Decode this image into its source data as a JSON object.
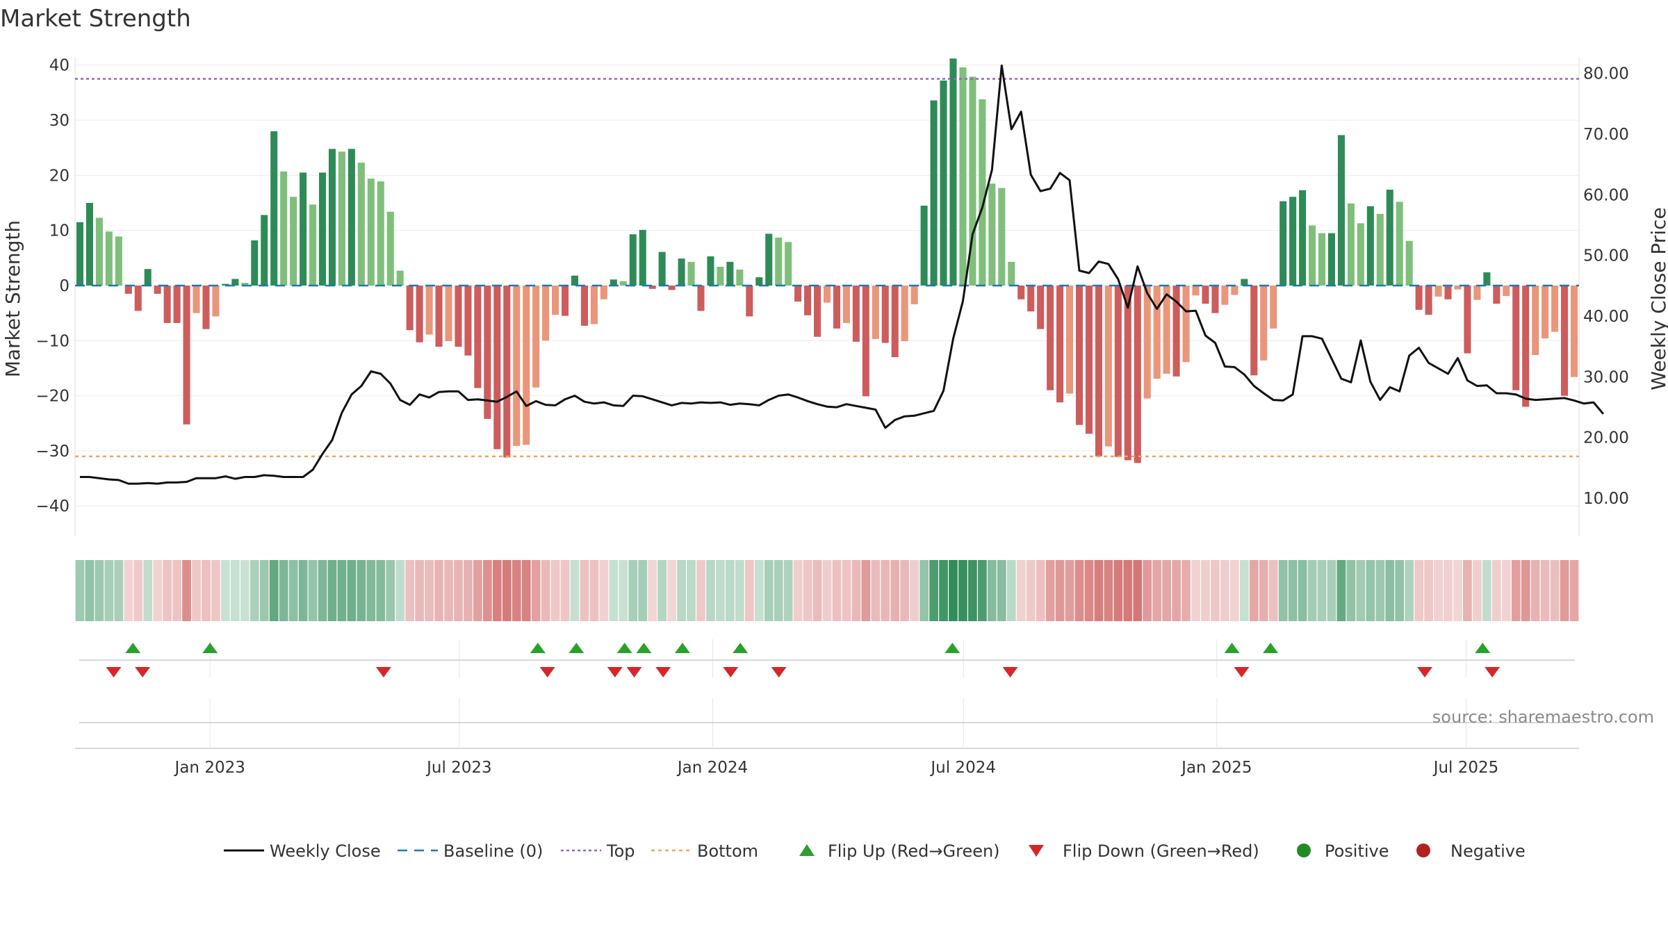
{
  "chart_data": {
    "type": "bar",
    "title": "Market Strength",
    "ylabel_left": "Market Strength",
    "ylabel_right": "Weekly Close Price",
    "ylim_left": [
      -43,
      44
    ],
    "yticks_left": [
      40,
      30,
      20,
      10,
      0,
      -10,
      -20,
      -30,
      -40
    ],
    "ytick_labels_left": [
      "40",
      "30",
      "20",
      "10",
      "0",
      "−10",
      "−20",
      "−30",
      "−40"
    ],
    "ylim_right": [
      6.0,
      85.0
    ],
    "yticks_right": [
      80,
      70,
      60,
      50,
      40,
      30,
      20,
      10
    ],
    "ytick_labels_right": [
      "80.00",
      "70.00",
      "60.00",
      "50.00",
      "40.00",
      "30.00",
      "20.00",
      "10.00"
    ],
    "x_start": "2022-09-25",
    "x_end": "2025-09-21",
    "xticks": [
      {
        "date": "2023-01-01",
        "label": "Jan 2023"
      },
      {
        "date": "2023-07-01",
        "label": "Jul 2023"
      },
      {
        "date": "2024-01-01",
        "label": "Jan 2024"
      },
      {
        "date": "2024-07-01",
        "label": "Jul 2024"
      },
      {
        "date": "2025-01-01",
        "label": "Jan 2025"
      },
      {
        "date": "2025-07-01",
        "label": "Jul 2025"
      }
    ],
    "thresholds": {
      "top": 37.5,
      "bottom": -31.0,
      "baseline": 0
    },
    "strength": [
      11.5,
      15.0,
      12.3,
      9.8,
      8.9,
      -1.5,
      -4.6,
      3.0,
      -1.5,
      -6.8,
      -6.8,
      -25.2,
      -5.0,
      -7.9,
      -5.6,
      0.3,
      1.2,
      0.5,
      8.2,
      12.8,
      28.0,
      20.7,
      16.1,
      20.5,
      14.7,
      20.5,
      24.8,
      24.3,
      24.8,
      22.3,
      19.4,
      18.9,
      13.4,
      2.7,
      -8.1,
      -10.3,
      -8.9,
      -11.1,
      -10.1,
      -11.1,
      -12.7,
      -18.6,
      -24.2,
      -29.7,
      -31.2,
      -29.1,
      -28.9,
      -18.5,
      -10.0,
      -5.3,
      -5.5,
      1.8,
      -7.3,
      -7.0,
      -2.5,
      1.1,
      0.8,
      9.3,
      10.1,
      -0.6,
      6.1,
      -0.8,
      4.9,
      4.3,
      -4.6,
      5.3,
      3.4,
      4.3,
      2.9,
      -5.6,
      1.5,
      9.4,
      8.7,
      7.9,
      -2.9,
      -5.4,
      -9.3,
      -3.1,
      -7.8,
      -6.8,
      -10.2,
      -20.1,
      -9.7,
      -10.4,
      -13.0,
      -10.1,
      -3.4,
      14.5,
      33.6,
      37.2,
      41.2,
      39.6,
      37.9,
      33.8,
      18.5,
      17.7,
      4.3,
      -2.5,
      -4.7,
      -7.9,
      -19.0,
      -21.2,
      -19.6,
      -25.3,
      -26.9,
      -31.0,
      -29.2,
      -31.1,
      -31.7,
      -32.2,
      -20.5,
      -16.9,
      -16.0,
      -16.5,
      -13.9,
      -1.8,
      -3.3,
      -5.0,
      -3.5,
      -1.7,
      1.2,
      -16.3,
      -13.6,
      -7.8,
      15.3,
      16.1,
      17.3,
      10.9,
      9.5,
      9.5,
      27.3,
      14.9,
      11.3,
      14.4,
      13.0,
      17.4,
      15.2,
      8.1,
      -4.4,
      -5.3,
      -2.0,
      -2.5,
      -0.7,
      -12.3,
      -2.6,
      2.4,
      -3.3,
      -1.9,
      -19.0,
      -22.0,
      -12.6,
      -9.6,
      -8.4,
      -20.0,
      -16.6
    ],
    "weekly_close": [
      13.5,
      13.5,
      13.3,
      13.1,
      13.0,
      12.4,
      12.4,
      12.5,
      12.4,
      12.6,
      12.6,
      12.7,
      13.3,
      13.3,
      13.3,
      13.6,
      13.2,
      13.5,
      13.5,
      13.8,
      13.7,
      13.5,
      13.5,
      13.5,
      14.7,
      17.3,
      19.6,
      24.1,
      27.1,
      28.5,
      30.9,
      30.5,
      28.9,
      26.2,
      25.4,
      27.1,
      26.6,
      27.5,
      27.6,
      27.6,
      26.2,
      26.3,
      26.1,
      25.9,
      26.7,
      27.6,
      25.2,
      26.0,
      25.4,
      25.3,
      26.3,
      26.9,
      25.9,
      25.6,
      25.8,
      25.3,
      25.2,
      26.9,
      26.8,
      26.3,
      25.8,
      25.3,
      25.7,
      25.6,
      25.8,
      25.7,
      25.8,
      25.4,
      25.6,
      25.5,
      25.3,
      26.2,
      26.9,
      27.1,
      26.6,
      26.0,
      25.5,
      25.1,
      25.0,
      25.5,
      25.2,
      24.9,
      24.6,
      21.6,
      22.9,
      23.5,
      23.6,
      24.0,
      24.4,
      27.7,
      36.3,
      42.5,
      53.5,
      57.9,
      64.1,
      81.3,
      70.8,
      73.7,
      63.3,
      60.6,
      61.0,
      63.6,
      62.4,
      47.5,
      47.1,
      49.0,
      48.6,
      46.1,
      41.4,
      48.2,
      43.8,
      41.2,
      43.6,
      42.4,
      40.8,
      40.9,
      36.8,
      35.6,
      31.7,
      31.6,
      30.4,
      28.5,
      27.3,
      26.2,
      26.1,
      27.1,
      36.7,
      36.7,
      36.3,
      33.0,
      29.7,
      29.1,
      36.0,
      29.2,
      26.2,
      28.3,
      27.6,
      33.5,
      34.8,
      32.3,
      31.4,
      30.5,
      33.1,
      29.4,
      28.5,
      28.6,
      27.3,
      27.3,
      27.1,
      26.4,
      26.2,
      26.3,
      26.4,
      26.5,
      26.1,
      25.6,
      25.8,
      23.9
    ]
  },
  "flips": {
    "up": [
      "2022-11-06",
      "2023-01-01",
      "2023-08-27",
      "2023-09-24",
      "2023-10-29",
      "2023-11-12",
      "2023-12-10",
      "2024-01-21",
      "2024-06-23",
      "2025-01-12",
      "2025-02-09",
      "2025-07-13"
    ],
    "down": [
      "2022-10-23",
      "2022-11-13",
      "2023-05-07",
      "2023-09-03",
      "2023-10-22",
      "2023-11-05",
      "2023-11-26",
      "2024-01-14",
      "2024-02-18",
      "2024-08-04",
      "2025-01-19",
      "2025-06-01",
      "2025-07-20"
    ]
  },
  "source_text": "source: sharemaestro.com",
  "legend": {
    "items": [
      {
        "label": "Weekly Close",
        "kind": "line"
      },
      {
        "label": "Baseline (0)",
        "kind": "dash"
      },
      {
        "label": "Top",
        "kind": "dot-purple"
      },
      {
        "label": "Bottom",
        "kind": "dot-orange"
      },
      {
        "label": "Flip Up (Red→Green)",
        "kind": "tri-up"
      },
      {
        "label": "Flip Down (Green→Red)",
        "kind": "tri-down"
      },
      {
        "label": "Positive",
        "kind": "circle-green"
      },
      {
        "label": "Negative",
        "kind": "circle-red"
      }
    ]
  },
  "colors": {
    "pos_strong": "#2e8b57",
    "pos_weak": "#7fbf7b",
    "neg_strong": "#cd5c5c",
    "neg_weak": "#e9967a",
    "close_line": "#111111",
    "baseline": "#1f77b4",
    "top_line": "#9467bd",
    "bottom_line": "#f4a261",
    "flip_up": "#2ca02c",
    "flip_down": "#d62728",
    "positive_marker": "#228b22",
    "negative_marker": "#b22222"
  }
}
